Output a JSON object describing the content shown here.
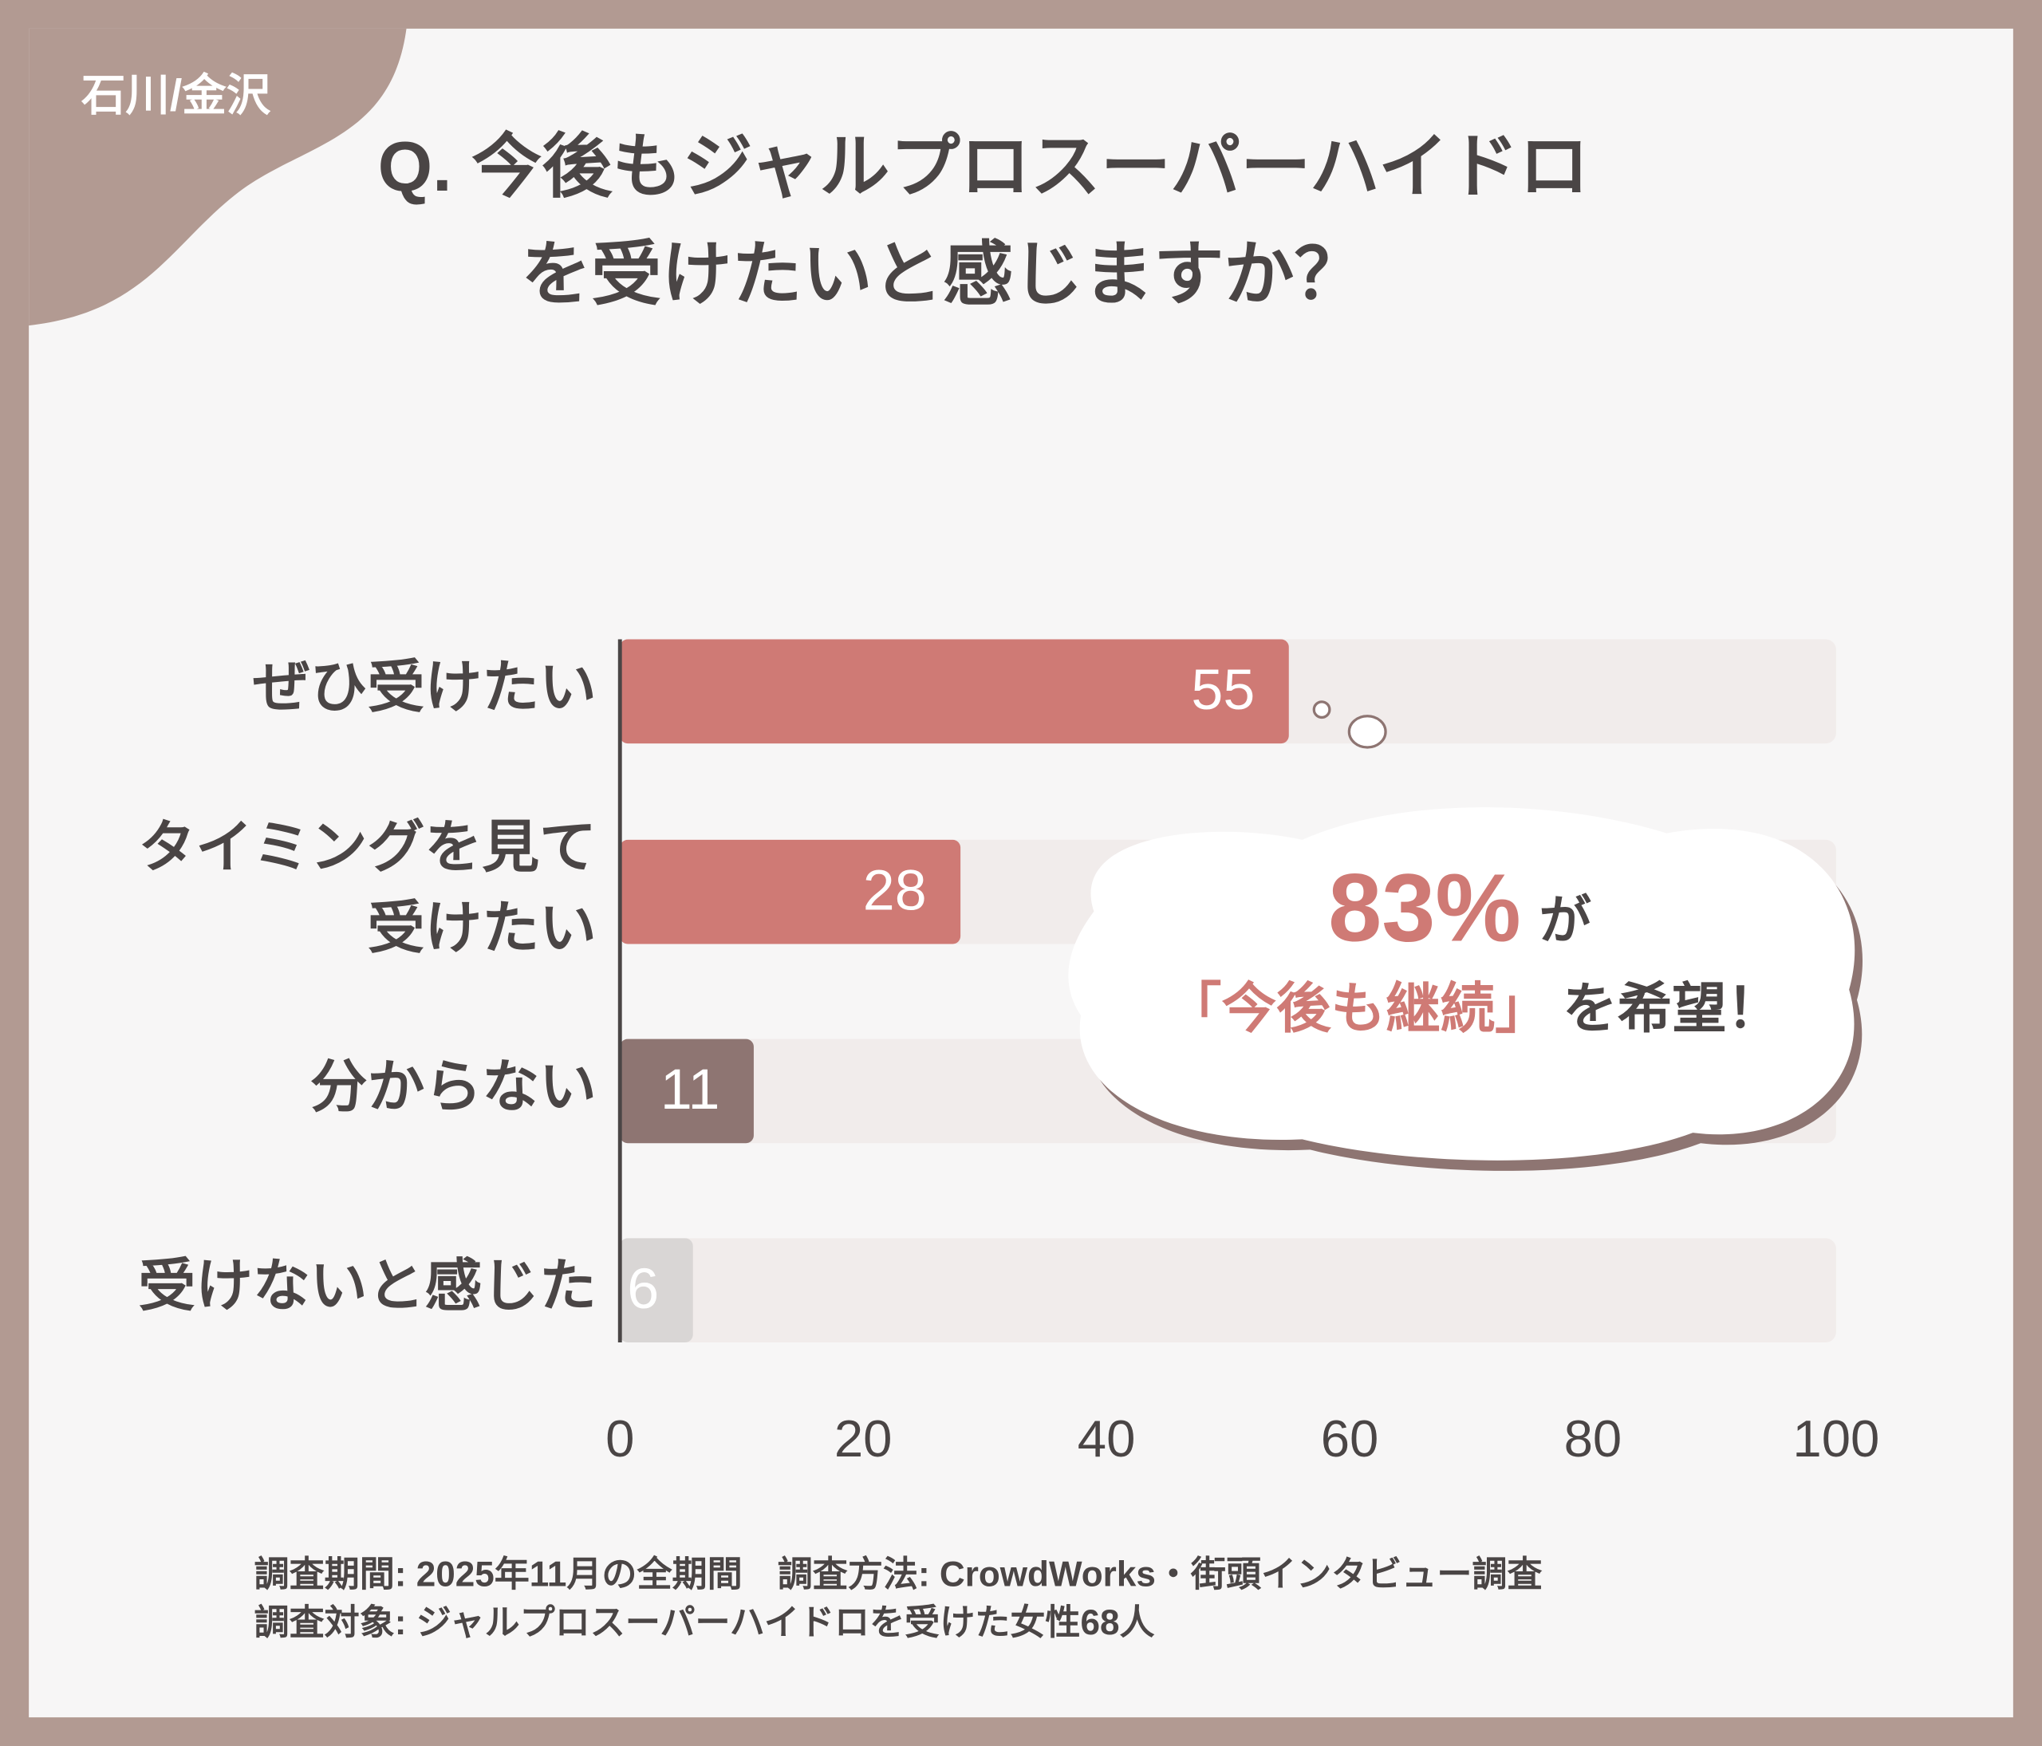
{
  "tag": "石川/金沢",
  "chart_data": {
    "type": "bar",
    "orientation": "horizontal",
    "title_lines": [
      "Q. 今後もジャルプロスーパーハイドロ",
      "を受けたいと感じますか？"
    ],
    "categories": [
      "ぜひ受けたい",
      "タイミングを見て\n受けたい",
      "分からない",
      "受けないと感じた"
    ],
    "values": [
      55,
      28,
      11,
      6
    ],
    "colors": [
      "#cf7a75",
      "#cf7a75",
      "#8e7572",
      "#d9d6d5"
    ],
    "track_color": "#f1eceb",
    "xlim": [
      0,
      100
    ],
    "xticks": [
      0,
      20,
      40,
      60,
      80,
      100
    ],
    "annotation": {
      "highlight": "83%",
      "highlight_suffix": "が",
      "quote": "「今後も継続」",
      "quote_suffix": "を希望！"
    }
  },
  "footer": [
    "調査期間: 2025年11月の全期間　調査方法: CrowdWorks・街頭インタビュー調査",
    "調査対象: ジャルプロスーパーハイドロを受けた女性68人"
  ]
}
